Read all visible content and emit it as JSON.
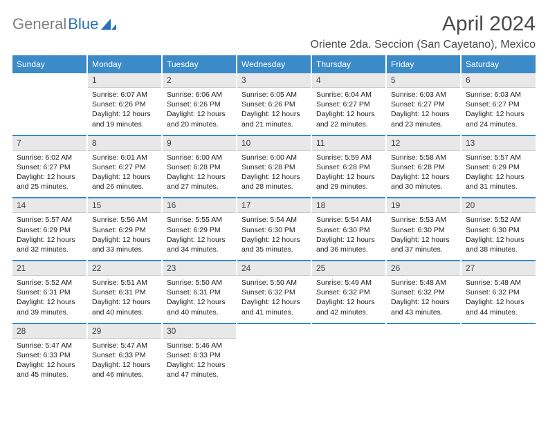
{
  "logo": {
    "text_gray": "General",
    "text_blue": "Blue",
    "icon_color": "#2a6fb5"
  },
  "title": "April 2024",
  "location": "Oriente 2da. Seccion (San Cayetano), Mexico",
  "colors": {
    "header_bg": "#3b8bc9",
    "header_fg": "#ffffff",
    "daynum_bg": "#e8e8e8",
    "border": "#3b8bc9"
  },
  "day_headers": [
    "Sunday",
    "Monday",
    "Tuesday",
    "Wednesday",
    "Thursday",
    "Friday",
    "Saturday"
  ],
  "weeks": [
    [
      null,
      {
        "n": "1",
        "sr": "6:07 AM",
        "ss": "6:26 PM",
        "dl": "12 hours and 19 minutes."
      },
      {
        "n": "2",
        "sr": "6:06 AM",
        "ss": "6:26 PM",
        "dl": "12 hours and 20 minutes."
      },
      {
        "n": "3",
        "sr": "6:05 AM",
        "ss": "6:26 PM",
        "dl": "12 hours and 21 minutes."
      },
      {
        "n": "4",
        "sr": "6:04 AM",
        "ss": "6:27 PM",
        "dl": "12 hours and 22 minutes."
      },
      {
        "n": "5",
        "sr": "6:03 AM",
        "ss": "6:27 PM",
        "dl": "12 hours and 23 minutes."
      },
      {
        "n": "6",
        "sr": "6:03 AM",
        "ss": "6:27 PM",
        "dl": "12 hours and 24 minutes."
      }
    ],
    [
      {
        "n": "7",
        "sr": "6:02 AM",
        "ss": "6:27 PM",
        "dl": "12 hours and 25 minutes."
      },
      {
        "n": "8",
        "sr": "6:01 AM",
        "ss": "6:27 PM",
        "dl": "12 hours and 26 minutes."
      },
      {
        "n": "9",
        "sr": "6:00 AM",
        "ss": "6:28 PM",
        "dl": "12 hours and 27 minutes."
      },
      {
        "n": "10",
        "sr": "6:00 AM",
        "ss": "6:28 PM",
        "dl": "12 hours and 28 minutes."
      },
      {
        "n": "11",
        "sr": "5:59 AM",
        "ss": "6:28 PM",
        "dl": "12 hours and 29 minutes."
      },
      {
        "n": "12",
        "sr": "5:58 AM",
        "ss": "6:28 PM",
        "dl": "12 hours and 30 minutes."
      },
      {
        "n": "13",
        "sr": "5:57 AM",
        "ss": "6:29 PM",
        "dl": "12 hours and 31 minutes."
      }
    ],
    [
      {
        "n": "14",
        "sr": "5:57 AM",
        "ss": "6:29 PM",
        "dl": "12 hours and 32 minutes."
      },
      {
        "n": "15",
        "sr": "5:56 AM",
        "ss": "6:29 PM",
        "dl": "12 hours and 33 minutes."
      },
      {
        "n": "16",
        "sr": "5:55 AM",
        "ss": "6:29 PM",
        "dl": "12 hours and 34 minutes."
      },
      {
        "n": "17",
        "sr": "5:54 AM",
        "ss": "6:30 PM",
        "dl": "12 hours and 35 minutes."
      },
      {
        "n": "18",
        "sr": "5:54 AM",
        "ss": "6:30 PM",
        "dl": "12 hours and 36 minutes."
      },
      {
        "n": "19",
        "sr": "5:53 AM",
        "ss": "6:30 PM",
        "dl": "12 hours and 37 minutes."
      },
      {
        "n": "20",
        "sr": "5:52 AM",
        "ss": "6:30 PM",
        "dl": "12 hours and 38 minutes."
      }
    ],
    [
      {
        "n": "21",
        "sr": "5:52 AM",
        "ss": "6:31 PM",
        "dl": "12 hours and 39 minutes."
      },
      {
        "n": "22",
        "sr": "5:51 AM",
        "ss": "6:31 PM",
        "dl": "12 hours and 40 minutes."
      },
      {
        "n": "23",
        "sr": "5:50 AM",
        "ss": "6:31 PM",
        "dl": "12 hours and 40 minutes."
      },
      {
        "n": "24",
        "sr": "5:50 AM",
        "ss": "6:32 PM",
        "dl": "12 hours and 41 minutes."
      },
      {
        "n": "25",
        "sr": "5:49 AM",
        "ss": "6:32 PM",
        "dl": "12 hours and 42 minutes."
      },
      {
        "n": "26",
        "sr": "5:48 AM",
        "ss": "6:32 PM",
        "dl": "12 hours and 43 minutes."
      },
      {
        "n": "27",
        "sr": "5:48 AM",
        "ss": "6:32 PM",
        "dl": "12 hours and 44 minutes."
      }
    ],
    [
      {
        "n": "28",
        "sr": "5:47 AM",
        "ss": "6:33 PM",
        "dl": "12 hours and 45 minutes."
      },
      {
        "n": "29",
        "sr": "5:47 AM",
        "ss": "6:33 PM",
        "dl": "12 hours and 46 minutes."
      },
      {
        "n": "30",
        "sr": "5:46 AM",
        "ss": "6:33 PM",
        "dl": "12 hours and 47 minutes."
      },
      null,
      null,
      null,
      null
    ]
  ],
  "labels": {
    "sunrise": "Sunrise: ",
    "sunset": "Sunset: ",
    "daylight": "Daylight: "
  }
}
